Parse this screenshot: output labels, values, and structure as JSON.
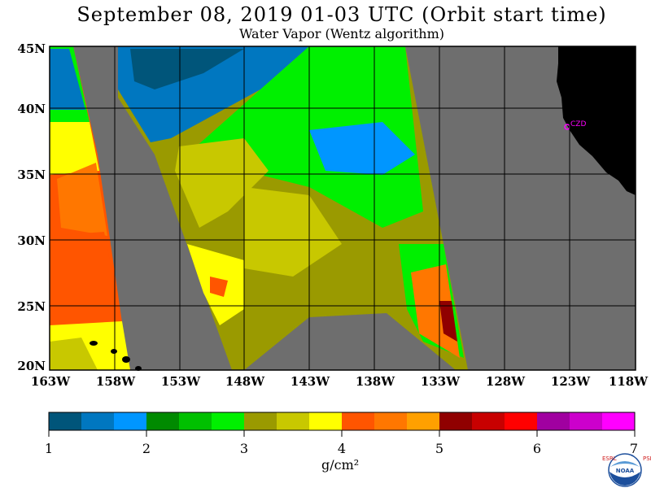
{
  "header": {
    "title": "September 08, 2019  01-03 UTC  (Orbit start time)",
    "subtitle": "Water Vapor (Wentz algorithm)"
  },
  "map": {
    "lat_labels": [
      "45N",
      "40N",
      "35N",
      "30N",
      "25N",
      "20N"
    ],
    "lon_labels": [
      "163W",
      "158W",
      "153W",
      "148W",
      "143W",
      "138W",
      "133W",
      "128W",
      "123W",
      "118W"
    ],
    "station_label": "CZD",
    "colors": {
      "nodata": "#6e6e6e",
      "land": "#000000",
      "grid": "#000000",
      "station": "#ff00ff"
    }
  },
  "colorbar": {
    "ticks": [
      "1",
      "2",
      "3",
      "4",
      "5",
      "6",
      "7"
    ],
    "units": "g/cm²",
    "colors": [
      "#00557a",
      "#0077c0",
      "#0096ff",
      "#008a00",
      "#00c000",
      "#00f000",
      "#9a9a00",
      "#c8c800",
      "#ffff00",
      "#ff5500",
      "#ff7700",
      "#ffa000",
      "#900000",
      "#c80000",
      "#ff0000",
      "#a000a0",
      "#cc00cc",
      "#ff00ff"
    ]
  },
  "logo": {
    "left_text": "ESRL",
    "right_text": "PSD",
    "center_text": "NOAA"
  }
}
